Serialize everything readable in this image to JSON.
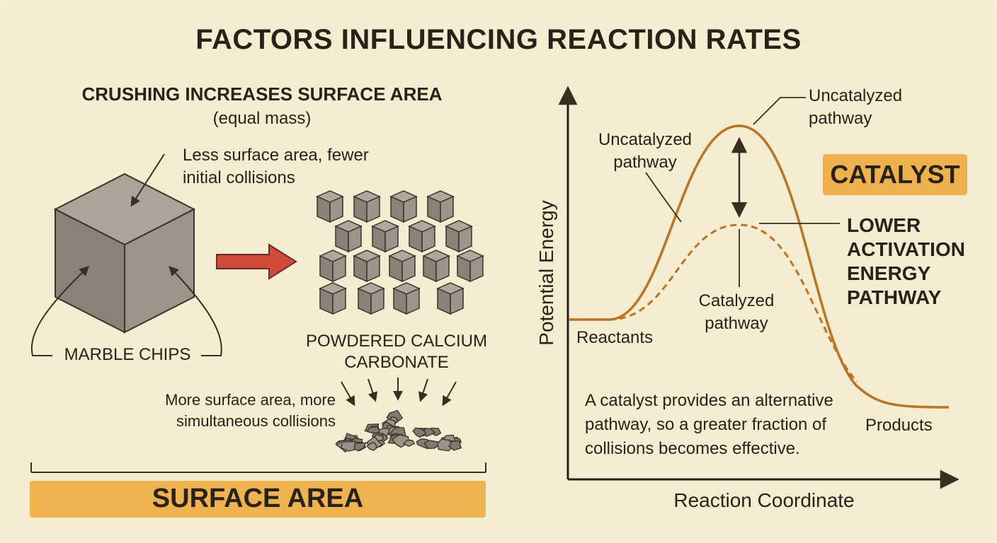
{
  "title": "FACTORS INFLUENCING REACTION RATES",
  "surface_panel": {
    "heading": "CRUSHING INCREASES SURFACE AREA",
    "subheading": "(equal mass)",
    "less_note": "Less surface area, fewer initial collisions",
    "marble_label": "MARBLE CHIPS",
    "powder_label": "POWDERED CALCIUM CARBONATE",
    "more_note": "More surface area, more simultaneous collisions",
    "banner": "SURFACE AREA"
  },
  "catalyst_panel": {
    "badge": "CATALYST",
    "uncatalyzed_label_1": "Uncatalyzed pathway",
    "uncatalyzed_label_2": "Uncatalyzed pathway",
    "catalyzed_label": "Catalyzed pathway",
    "lower_label": "LOWER ACTIVATION ENERGY PATHWAY",
    "reactants": "Reactants",
    "products": "Products",
    "explanation": "A catalyst provides an alternative pathway, so a greater fraction of collisions becomes effective.",
    "xlabel": "Reaction Coordinate",
    "ylabel": "Potential Energy"
  },
  "colors": {
    "background": "#f6ecd2",
    "accent": "#eeb24f",
    "curve": "#b97424",
    "arrow_red": "#d24a3a",
    "cube": "#8f877c",
    "text": "#2a2118"
  }
}
